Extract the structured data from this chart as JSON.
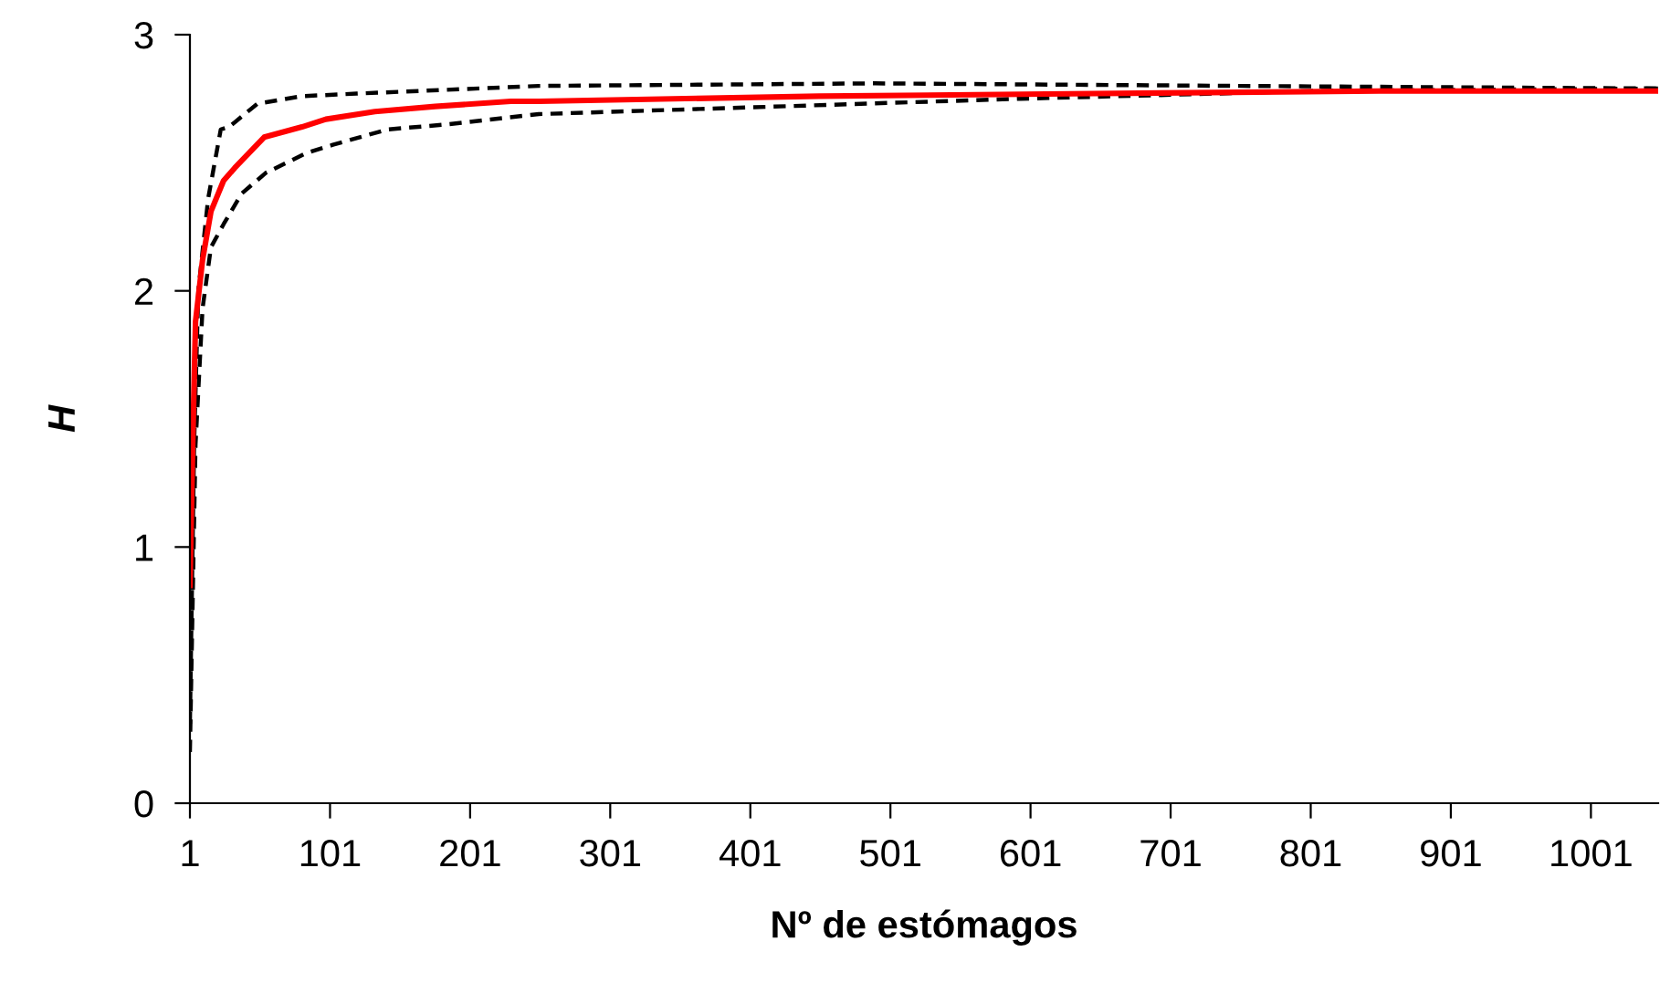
{
  "chart_data": {
    "type": "line",
    "xlabel": "Nº de estómagos",
    "ylabel": "H",
    "xlim": [
      1,
      1049
    ],
    "xticks": [
      1,
      101,
      201,
      301,
      401,
      501,
      601,
      701,
      801,
      901,
      1001
    ],
    "ylim": [
      0,
      3
    ],
    "yticks": [
      0,
      1,
      2,
      3
    ],
    "grid": false,
    "series": [
      {
        "color": "#ff0000",
        "line_style": "solid",
        "x": [
          1,
          3,
          5,
          10,
          16,
          25,
          33,
          54,
          81,
          98,
          133,
          176,
          230,
          250,
          450,
          646,
          850,
          1049
        ],
        "values": [
          0.85,
          1.4,
          1.88,
          2.12,
          2.31,
          2.43,
          2.48,
          2.6,
          2.64,
          2.67,
          2.7,
          2.72,
          2.74,
          2.74,
          2.76,
          2.77,
          2.78,
          2.78
        ]
      },
      {
        "color": "#000000",
        "line_style": "dashed",
        "x": [
          1,
          4,
          7,
          14,
          23,
          29,
          49,
          81,
          120,
          250,
          490,
          750,
          1049
        ],
        "values": [
          0.31,
          1.4,
          2.0,
          2.36,
          2.63,
          2.64,
          2.73,
          2.76,
          2.77,
          2.8,
          2.81,
          2.8,
          2.79
        ]
      },
      {
        "color": "#000000",
        "line_style": "dashed",
        "x": [
          1,
          5,
          10,
          16,
          25,
          38,
          55,
          85,
          103,
          142,
          185,
          250,
          365,
          594,
          802,
          1049
        ],
        "values": [
          0.2,
          1.4,
          1.93,
          2.17,
          2.26,
          2.38,
          2.46,
          2.54,
          2.57,
          2.63,
          2.65,
          2.69,
          2.71,
          2.75,
          2.78,
          2.79
        ]
      }
    ]
  }
}
